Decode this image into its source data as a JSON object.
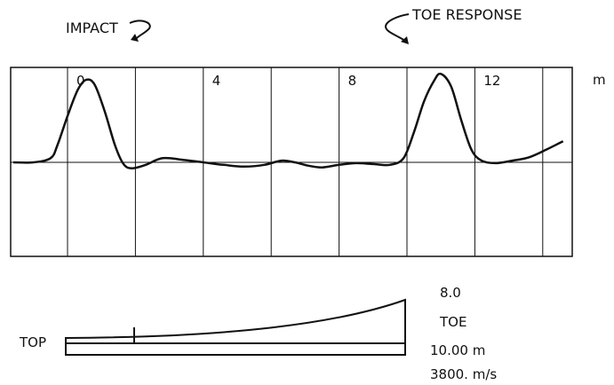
{
  "chart_data": {
    "type": "line",
    "annotations": {
      "impact": "IMPACT",
      "toe_response": "TOE RESPONSE"
    },
    "x_tick_labels": [
      "0",
      "4",
      "8",
      "12"
    ],
    "x_unit": "m",
    "series": [
      {
        "points": [
          [
            -1.6,
            0.0
          ],
          [
            -1.0,
            0.0
          ],
          [
            -0.5,
            0.05
          ],
          [
            -0.3,
            0.2
          ],
          [
            0.0,
            0.55
          ],
          [
            0.3,
            0.86
          ],
          [
            0.55,
            0.98
          ],
          [
            0.8,
            0.92
          ],
          [
            1.1,
            0.6
          ],
          [
            1.4,
            0.2
          ],
          [
            1.65,
            -0.02
          ],
          [
            1.9,
            -0.07
          ],
          [
            2.3,
            -0.03
          ],
          [
            2.8,
            0.05
          ],
          [
            3.4,
            0.03
          ],
          [
            4.0,
            0.0
          ],
          [
            4.6,
            -0.03
          ],
          [
            5.2,
            -0.05
          ],
          [
            5.8,
            -0.03
          ],
          [
            6.3,
            0.02
          ],
          [
            6.7,
            0.0
          ],
          [
            7.1,
            -0.04
          ],
          [
            7.5,
            -0.06
          ],
          [
            8.0,
            -0.03
          ],
          [
            8.5,
            -0.01
          ],
          [
            9.0,
            -0.02
          ],
          [
            9.5,
            -0.03
          ],
          [
            9.9,
            0.05
          ],
          [
            10.2,
            0.35
          ],
          [
            10.5,
            0.72
          ],
          [
            10.8,
            0.97
          ],
          [
            11.0,
            1.05
          ],
          [
            11.3,
            0.9
          ],
          [
            11.6,
            0.5
          ],
          [
            11.9,
            0.15
          ],
          [
            12.2,
            0.02
          ],
          [
            12.6,
            -0.01
          ],
          [
            13.1,
            0.02
          ],
          [
            13.6,
            0.06
          ],
          [
            14.1,
            0.15
          ],
          [
            14.6,
            0.25
          ]
        ]
      }
    ],
    "grid": true
  },
  "pile": {
    "top_label": "TOP",
    "toe_label": "TOE",
    "top_value": "8.0",
    "length": "10.00 m",
    "wave_speed": "3800. m/s"
  }
}
